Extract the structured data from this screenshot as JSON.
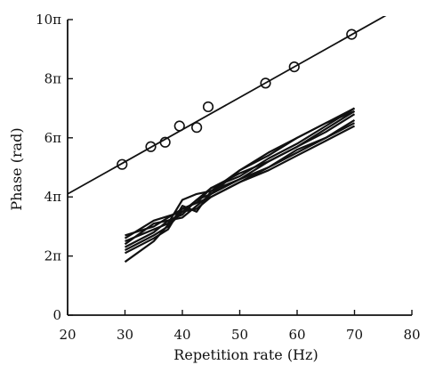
{
  "chart_data": {
    "type": "line",
    "title": "",
    "xlabel": "Repetition rate (Hz)",
    "ylabel": "Phase (rad)",
    "xlim": [
      20,
      80
    ],
    "ylim": [
      0,
      10
    ],
    "x_ticks": [
      20,
      30,
      40,
      50,
      60,
      70,
      80
    ],
    "x_tick_labels": [
      "20",
      "30",
      "40",
      "50",
      "60",
      "70",
      "80"
    ],
    "y_ticks": [
      0,
      2,
      4,
      6,
      8,
      10
    ],
    "y_tick_labels": [
      "0",
      "2π",
      "4π",
      "6π",
      "8π",
      "10π"
    ],
    "y_unit": "π rad",
    "grid": false,
    "legend": "none",
    "series": [
      {
        "style": "markers",
        "marker": "open-circle",
        "x": [
          29.5,
          34.5,
          37,
          39.5,
          42.5,
          44.5,
          54.5,
          59.5,
          69.5
        ],
        "y": [
          5.1,
          5.7,
          5.85,
          6.4,
          6.35,
          7.05,
          7.85,
          8.4,
          9.5
        ]
      },
      {
        "style": "line",
        "x": [
          20,
          76
        ],
        "y": [
          4.1,
          10.2
        ]
      },
      {
        "style": "line",
        "x": [
          30,
          35,
          40,
          45,
          50,
          55,
          60,
          65,
          70
        ],
        "y": [
          2.6,
          3.2,
          3.5,
          4.3,
          4.7,
          5.3,
          5.8,
          6.4,
          7.0
        ]
      },
      {
        "style": "line",
        "x": [
          30,
          35,
          37.5,
          40,
          42.5,
          45,
          50,
          55,
          60,
          65,
          70
        ],
        "y": [
          2.5,
          2.9,
          3.1,
          3.9,
          4.1,
          4.2,
          4.9,
          5.4,
          6.0,
          6.5,
          6.9
        ]
      },
      {
        "style": "line",
        "x": [
          30,
          35,
          40,
          45,
          50,
          55,
          60,
          65,
          70
        ],
        "y": [
          1.8,
          2.5,
          3.6,
          4.0,
          4.5,
          5.0,
          5.5,
          6.0,
          6.5
        ]
      },
      {
        "style": "line",
        "x": [
          30,
          35,
          37.5,
          40,
          42.5,
          45,
          50,
          55,
          60,
          65,
          70
        ],
        "y": [
          2.3,
          2.8,
          3.2,
          3.4,
          3.9,
          4.1,
          4.6,
          5.2,
          5.7,
          6.2,
          6.8
        ]
      },
      {
        "style": "line",
        "x": [
          30,
          35,
          37.5,
          40,
          42.5,
          45,
          50,
          55,
          60,
          65,
          70
        ],
        "y": [
          2.7,
          3.0,
          3.3,
          3.6,
          3.8,
          4.3,
          4.8,
          5.2,
          5.7,
          6.3,
          6.9
        ]
      },
      {
        "style": "line",
        "x": [
          30,
          35,
          37.5,
          40,
          42.5,
          45,
          50,
          55,
          60,
          65,
          70
        ],
        "y": [
          2.1,
          2.6,
          2.9,
          3.7,
          3.5,
          4.2,
          4.6,
          5.0,
          5.6,
          6.0,
          6.6
        ]
      },
      {
        "style": "line",
        "x": [
          30,
          35,
          40,
          45,
          50,
          55,
          60,
          65,
          70
        ],
        "y": [
          2.4,
          3.1,
          3.3,
          4.1,
          4.9,
          5.5,
          6.0,
          6.5,
          7.0
        ]
      },
      {
        "style": "line",
        "x": [
          30,
          35,
          37.5,
          40,
          42.5,
          45,
          50,
          55,
          60,
          65,
          70
        ],
        "y": [
          2.2,
          2.7,
          3.0,
          3.5,
          3.6,
          4.0,
          4.5,
          4.9,
          5.4,
          5.9,
          6.4
        ]
      }
    ]
  }
}
